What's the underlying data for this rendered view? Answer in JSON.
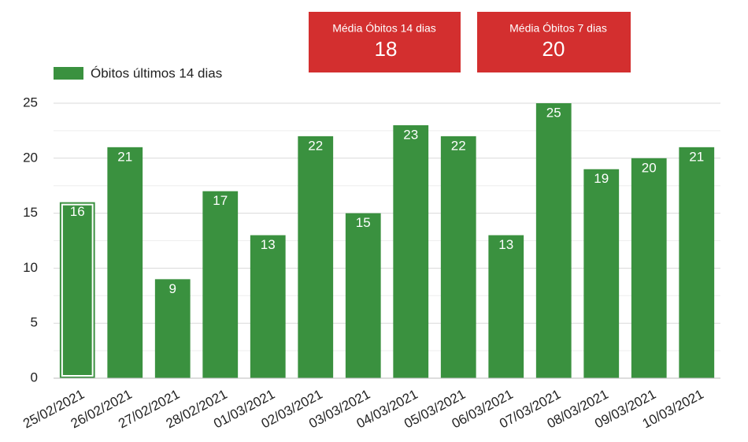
{
  "cards": [
    {
      "label": "Média Óbitos 14 dias",
      "value": 18
    },
    {
      "label": "Média Óbitos 7 dias",
      "value": 20
    }
  ],
  "chart_data": {
    "type": "bar",
    "categories": [
      "25/02/2021",
      "26/02/2021",
      "27/02/2021",
      "28/02/2021",
      "01/03/2021",
      "02/03/2021",
      "03/03/2021",
      "04/03/2021",
      "05/03/2021",
      "06/03/2021",
      "07/03/2021",
      "08/03/2021",
      "09/03/2021",
      "10/03/2021"
    ],
    "series": [
      {
        "name": "Óbitos últimos 14 dias",
        "color": "#3a913f",
        "values": [
          16,
          21,
          9,
          17,
          13,
          22,
          15,
          23,
          22,
          13,
          25,
          19,
          20,
          21
        ]
      }
    ],
    "ylim": [
      0,
      25
    ],
    "yticks": [
      0,
      5,
      10,
      15,
      20,
      25
    ],
    "minor_yticks": [
      2.5,
      7.5,
      12.5,
      17.5,
      22.5
    ],
    "grid": true,
    "legend": "top-left"
  }
}
